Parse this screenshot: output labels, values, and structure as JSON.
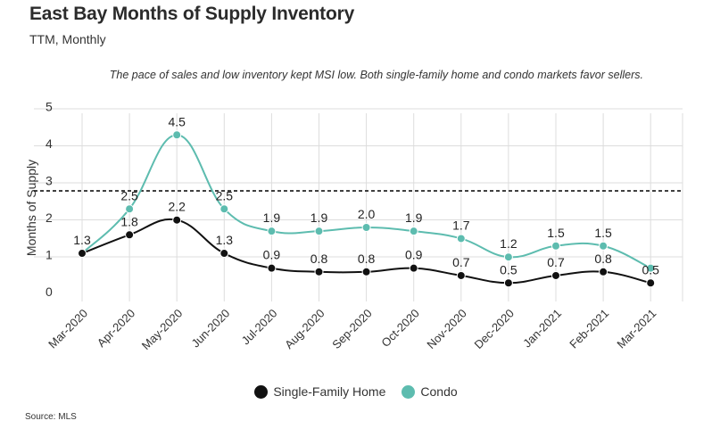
{
  "header": {
    "title": "East Bay Months of Supply Inventory",
    "subtitle": "TTM, Monthly",
    "note": "The pace of sales and low inventory kept MSI low. Both single-family home and condo markets favor sellers."
  },
  "source": "Source:  MLS",
  "colors": {
    "sfh": "#111111",
    "condo": "#5dbcaf",
    "grid": "#dddddd",
    "reference": "#000000"
  },
  "chart_data": {
    "type": "line",
    "ylabel": "Months of Supply",
    "ylim": [
      0,
      5
    ],
    "yticks": [
      "0",
      "1",
      "2",
      "3",
      "4",
      "5"
    ],
    "reference_line": 3,
    "grid": true,
    "legend_position": "bottom",
    "categories": [
      "Mar-2020",
      "Apr-2020",
      "May-2020",
      "Jun-2020",
      "Jul-2020",
      "Aug-2020",
      "Sep-2020",
      "Oct-2020",
      "Nov-2020",
      "Dec-2020",
      "Jan-2021",
      "Feb-2021",
      "Mar-2021"
    ],
    "series": [
      {
        "name": "Single-Family Home",
        "key": "sfh",
        "values": [
          1.3,
          1.8,
          2.2,
          1.3,
          0.9,
          0.8,
          0.8,
          0.9,
          0.7,
          0.5,
          0.7,
          0.8,
          0.5
        ],
        "labels": [
          "1.3",
          "1.8",
          "2.2",
          "1.3",
          "0.9",
          "0.8",
          "0.8",
          "0.9",
          "0.7",
          "0.5",
          "0.7",
          "0.8",
          "0.5"
        ]
      },
      {
        "name": "Condo",
        "key": "condo",
        "values": [
          1.3,
          2.5,
          4.5,
          2.5,
          1.9,
          1.9,
          2.0,
          1.9,
          1.7,
          1.2,
          1.5,
          1.5,
          0.9
        ],
        "labels": [
          "",
          "2.5",
          "4.5",
          "2.5",
          "1.9",
          "1.9",
          "2.0",
          "1.9",
          "1.7",
          "1.2",
          "1.5",
          "1.5",
          ""
        ]
      }
    ]
  }
}
